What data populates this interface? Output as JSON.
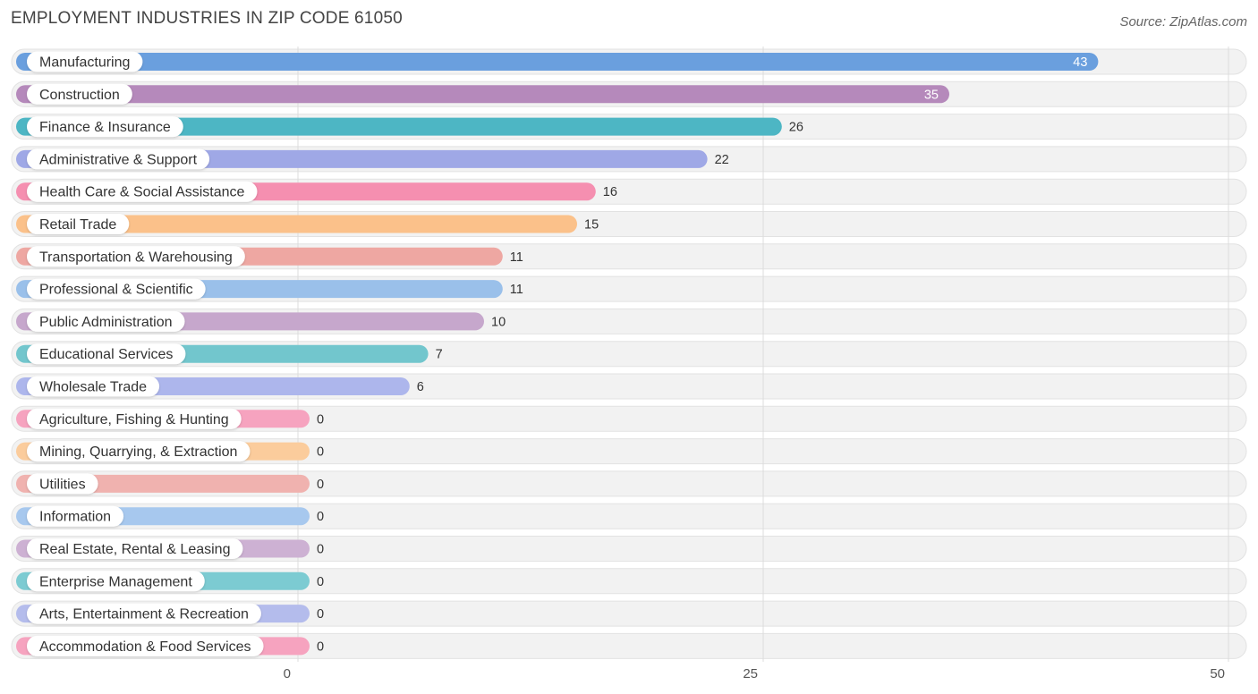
{
  "chart_data": {
    "type": "bar",
    "orientation": "horizontal",
    "title": "EMPLOYMENT INDUSTRIES IN ZIP CODE 61050",
    "source": "Source: ZipAtlas.com",
    "xlim": [
      0,
      50
    ],
    "xticks": [
      0,
      25,
      50
    ],
    "grid": true,
    "categories": [
      "Manufacturing",
      "Construction",
      "Finance & Insurance",
      "Administrative & Support",
      "Health Care & Social Assistance",
      "Retail Trade",
      "Transportation & Warehousing",
      "Professional & Scientific",
      "Public Administration",
      "Educational Services",
      "Wholesale Trade",
      "Agriculture, Fishing & Hunting",
      "Mining, Quarrying, & Extraction",
      "Utilities",
      "Information",
      "Real Estate, Rental & Leasing",
      "Enterprise Management",
      "Arts, Entertainment & Recreation",
      "Accommodation & Food Services"
    ],
    "values": [
      43,
      35,
      26,
      22,
      16,
      15,
      11,
      11,
      10,
      7,
      6,
      0,
      0,
      0,
      0,
      0,
      0,
      0,
      0
    ],
    "colors": [
      "#6a9fde",
      "#b589bb",
      "#4db6c4",
      "#9fa8e6",
      "#f58fb0",
      "#fbc18a",
      "#eea7a2",
      "#9ac0ea",
      "#c6a7cc",
      "#72c6cd",
      "#adb6ec",
      "#f6a3bf",
      "#fbcc9c",
      "#f0b2af",
      "#a7c8ee",
      "#cdb1d3",
      "#7ccbd2",
      "#b4bcec",
      "#f6a3bf"
    ]
  }
}
